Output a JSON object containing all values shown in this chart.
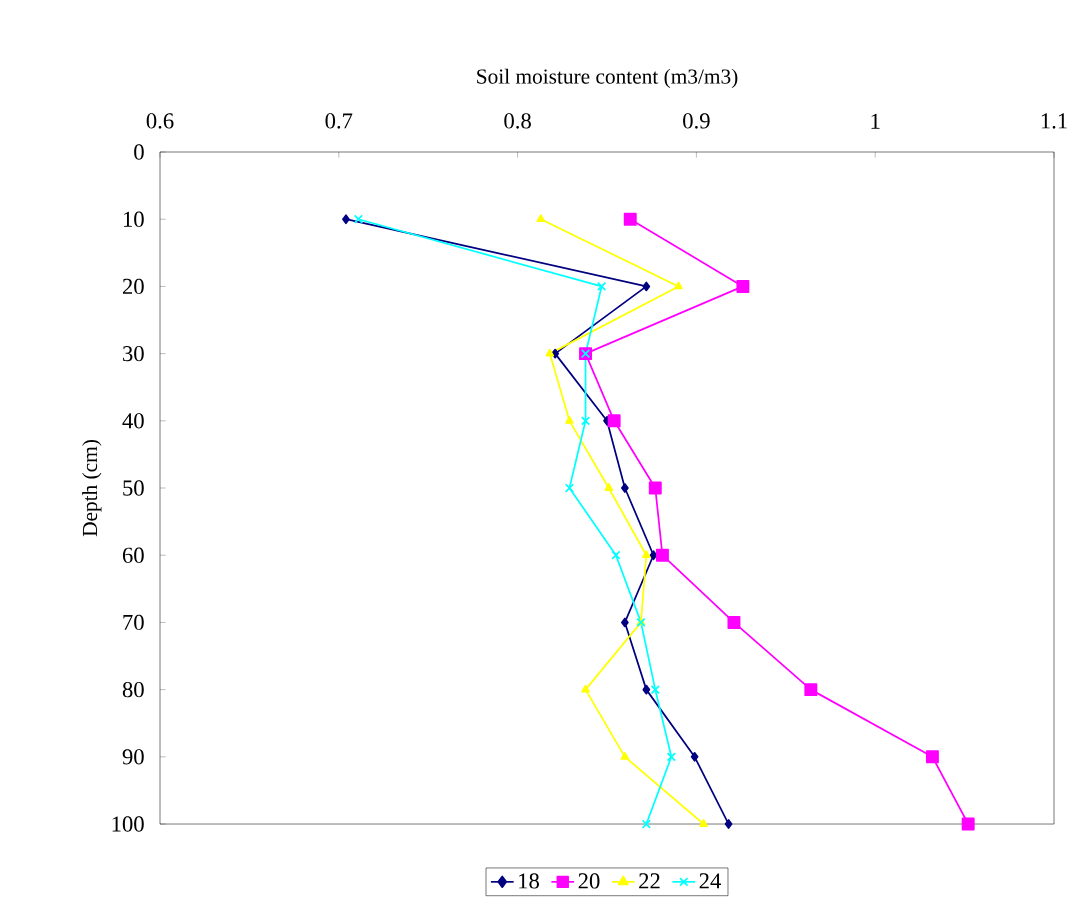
{
  "chart_data": {
    "type": "line",
    "xlabel": "Soil moisture content (m3/m3)",
    "ylabel": "Depth (cm)",
    "xlim": [
      0.6,
      1.1
    ],
    "xticks": [
      0.6,
      0.7,
      0.8,
      0.9,
      1,
      1.1
    ],
    "ylim": [
      100,
      0
    ],
    "yticks": [
      0,
      10,
      20,
      30,
      40,
      50,
      60,
      70,
      80,
      90,
      100
    ],
    "grid": false,
    "legend": "bottom",
    "line_style": "solid",
    "series": [
      {
        "name": "18",
        "color": "#000080",
        "marker": "diamond",
        "x": [
          0.704,
          0.872,
          0.821,
          0.85,
          0.86,
          0.876,
          0.86,
          0.872,
          0.899,
          0.918
        ],
        "values": [
          10,
          20,
          30,
          40,
          50,
          60,
          70,
          80,
          90,
          100
        ]
      },
      {
        "name": "20",
        "color": "#ff00ff",
        "marker": "square",
        "x": [
          0.863,
          0.926,
          0.838,
          0.854,
          0.877,
          0.881,
          0.921,
          0.964,
          1.032,
          1.052
        ],
        "values": [
          10,
          20,
          30,
          40,
          50,
          60,
          70,
          80,
          90,
          100
        ]
      },
      {
        "name": "22",
        "color": "#ffff00",
        "marker": "triangle",
        "x": [
          0.813,
          0.89,
          0.818,
          0.829,
          0.851,
          0.872,
          0.869,
          0.838,
          0.86,
          0.904
        ],
        "values": [
          10,
          20,
          30,
          40,
          50,
          60,
          70,
          80,
          90,
          100
        ]
      },
      {
        "name": "24",
        "color": "#00ffff",
        "marker": "cross",
        "x": [
          0.711,
          0.847,
          0.838,
          0.838,
          0.829,
          0.855,
          0.869,
          0.877,
          0.886,
          0.872
        ],
        "values": [
          10,
          20,
          30,
          40,
          50,
          60,
          70,
          80,
          90,
          100
        ]
      }
    ]
  }
}
